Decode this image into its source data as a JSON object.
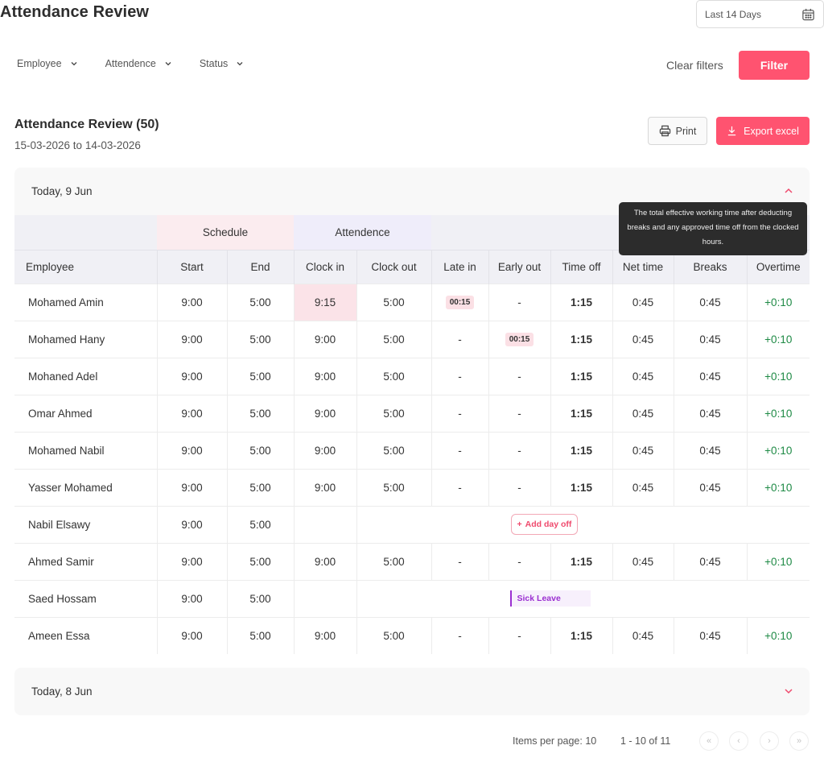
{
  "header": {
    "title": "Attendance Review",
    "date_range": "Last 14 Days"
  },
  "filters": {
    "items": [
      "Employee",
      "Attendence",
      "Status"
    ],
    "clear_label": "Clear filters",
    "filter_label": "Filter"
  },
  "review": {
    "title": "Attendance Review (50)",
    "range": "15-03-2026 to 14-03-2026",
    "print_label": "Print",
    "export_label": "Export excel"
  },
  "days": [
    {
      "label": "Today, 9 Jun",
      "expanded": true
    },
    {
      "label": "Today, 8 Jun",
      "expanded": false
    }
  ],
  "table": {
    "groups": {
      "schedule": "Schedule",
      "attendance": "Attendence"
    },
    "columns": [
      "Employee",
      "Start",
      "End",
      "Clock in",
      "Clock out",
      "Late in",
      "Early out",
      "Time off",
      "Net time",
      "Breaks",
      "Overtime"
    ],
    "rows": [
      {
        "name": "Mohamed Amin",
        "start": "9:00",
        "end": "5:00",
        "clock_in": "9:15",
        "clock_in_late": true,
        "clock_out": "5:00",
        "late_in": "00:15",
        "early_out": "-",
        "time_off": "1:15",
        "net": "0:45",
        "breaks": "0:45",
        "overtime": "+0:10"
      },
      {
        "name": "Mohamed Hany",
        "start": "9:00",
        "end": "5:00",
        "clock_in": "9:00",
        "clock_out": "5:00",
        "late_in": "-",
        "early_out": "00:15",
        "time_off": "1:15",
        "net": "0:45",
        "breaks": "0:45",
        "overtime": "+0:10"
      },
      {
        "name": "Mohaned Adel",
        "start": "9:00",
        "end": "5:00",
        "clock_in": "9:00",
        "clock_out": "5:00",
        "late_in": "-",
        "early_out": "-",
        "time_off": "1:15",
        "net": "0:45",
        "breaks": "0:45",
        "overtime": "+0:10"
      },
      {
        "name": "Omar Ahmed",
        "start": "9:00",
        "end": "5:00",
        "clock_in": "9:00",
        "clock_out": "5:00",
        "late_in": "-",
        "early_out": "-",
        "time_off": "1:15",
        "net": "0:45",
        "breaks": "0:45",
        "overtime": "+0:10"
      },
      {
        "name": "Mohamed Nabil",
        "start": "9:00",
        "end": "5:00",
        "clock_in": "9:00",
        "clock_out": "5:00",
        "late_in": "-",
        "early_out": "-",
        "time_off": "1:15",
        "net": "0:45",
        "breaks": "0:45",
        "overtime": "+0:10"
      },
      {
        "name": "Yasser Mohamed",
        "start": "9:00",
        "end": "5:00",
        "clock_in": "9:00",
        "clock_out": "5:00",
        "late_in": "-",
        "early_out": "-",
        "time_off": "1:15",
        "net": "0:45",
        "breaks": "0:45",
        "overtime": "+0:10"
      },
      {
        "name": "Nabil Elsawy",
        "start": "9:00",
        "end": "5:00",
        "special": "add_day_off"
      },
      {
        "name": "Ahmed Samir",
        "start": "9:00",
        "end": "5:00",
        "clock_in": "9:00",
        "clock_out": "5:00",
        "late_in": "-",
        "early_out": "-",
        "time_off": "1:15",
        "net": "0:45",
        "breaks": "0:45",
        "overtime": "+0:10"
      },
      {
        "name": "Saed Hossam",
        "start": "9:00",
        "end": "5:00",
        "special": "sick_leave"
      },
      {
        "name": "Ameen Essa",
        "start": "9:00",
        "end": "5:00",
        "clock_in": "9:00",
        "clock_out": "5:00",
        "late_in": "-",
        "early_out": "-",
        "time_off": "1:15",
        "net": "0:45",
        "breaks": "0:45",
        "overtime": "+0:10"
      }
    ],
    "add_day_off_label": "Add day off",
    "sick_leave_label": "Sick Leave"
  },
  "tooltip": {
    "text": "The total effective working time after deducting breaks and any approved time off from the clocked hours."
  },
  "pagination": {
    "items_per_page": "Items per page: 10",
    "range": "1 - 10 of 11",
    "first": "«",
    "prev": "‹",
    "next": "›",
    "last": "»"
  },
  "colors": {
    "accent": "#ff5370",
    "overtime": "#1e8a45",
    "sick_leave": "#9b2fd1",
    "late_highlight": "#fbe3e8"
  }
}
